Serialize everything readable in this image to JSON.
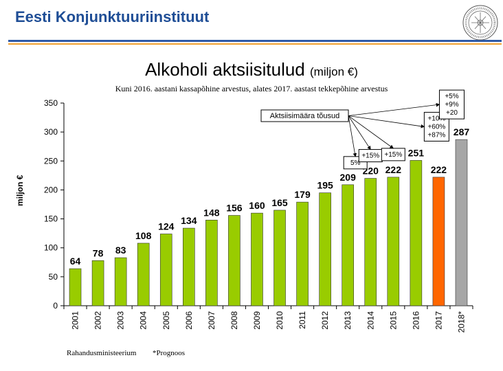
{
  "header": {
    "org_name": "Eesti Konjunktuuriinstituut",
    "logo_icon": "institute-seal-icon",
    "colors": {
      "title": "#1f4e96",
      "rule_blue": "#2e5aa8",
      "rule_orange": "#f0a030"
    }
  },
  "chart_data": {
    "type": "bar",
    "title": "Alkoholi aktsiisitulud",
    "title_unit": "(miljon €)",
    "subtitle": "Kuni 2016. aastani kassapõhine arvestus, alates 2017. aastast tekkepõhine arvestus",
    "ylabel": "miljon €",
    "xlabel": "",
    "ylim": [
      0,
      350
    ],
    "yticks": [
      0,
      50,
      100,
      150,
      200,
      250,
      300,
      350
    ],
    "grid": false,
    "categories": [
      "2001",
      "2002",
      "2003",
      "2004",
      "2005",
      "2006",
      "2007",
      "2008",
      "2009",
      "2010",
      "2011",
      "2012",
      "2013",
      "2014",
      "2015",
      "2016",
      "2017",
      "2018*"
    ],
    "values": [
      64,
      78,
      83,
      108,
      124,
      134,
      148,
      156,
      160,
      165,
      179,
      195,
      209,
      220,
      222,
      251,
      222,
      287
    ],
    "bar_colors": [
      "#99cc00",
      "#99cc00",
      "#99cc00",
      "#99cc00",
      "#99cc00",
      "#99cc00",
      "#99cc00",
      "#99cc00",
      "#99cc00",
      "#99cc00",
      "#99cc00",
      "#99cc00",
      "#99cc00",
      "#99cc00",
      "#99cc00",
      "#99cc00",
      "#ff6600",
      "#a6a6a6"
    ],
    "annotations": {
      "main_label": "Aktsiisimäära tõusud",
      "increases": [
        {
          "year": "2013",
          "text": [
            "5%"
          ]
        },
        {
          "year": "2014",
          "text": [
            "+15%"
          ]
        },
        {
          "year": "2015",
          "text": [
            "+15%"
          ]
        },
        {
          "year": "2016",
          "text": [
            "+10%",
            "+60%",
            "+87%"
          ]
        },
        {
          "year": "2018*",
          "text": [
            "+5%",
            "+9%",
            "+20"
          ]
        }
      ]
    }
  },
  "footer": {
    "source": "Rahandusministeerium",
    "note": "*Prognoos"
  }
}
